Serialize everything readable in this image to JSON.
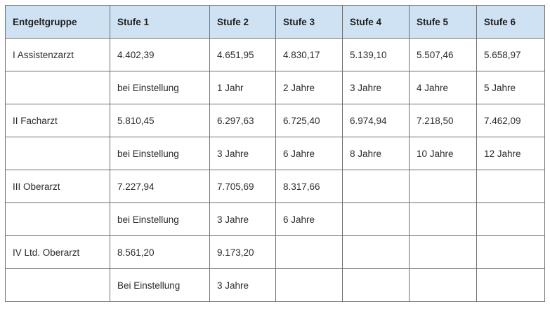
{
  "table": {
    "headers": [
      "Entgeltgruppe",
      "Stufe 1",
      "Stufe 2",
      "Stufe 3",
      "Stufe 4",
      "Stufe 5",
      "Stufe 6"
    ],
    "rows": [
      [
        "I Assistenzarzt",
        "4.402,39",
        "4.651,95",
        "4.830,17",
        "5.139,10",
        "5.507,46",
        "5.658,97"
      ],
      [
        "",
        "bei Einstellung",
        "1 Jahr",
        "2 Jahre",
        "3 Jahre",
        "4 Jahre",
        "5 Jahre"
      ],
      [
        "II Facharzt",
        "5.810,45",
        "6.297,63",
        "6.725,40",
        "6.974,94",
        "7.218,50",
        "7.462,09"
      ],
      [
        "",
        "bei Einstellung",
        "3 Jahre",
        "6 Jahre",
        "8 Jahre",
        "10 Jahre",
        "12 Jahre"
      ],
      [
        "III Oberarzt",
        "7.227,94",
        "7.705,69",
        "8.317,66",
        "",
        "",
        ""
      ],
      [
        "",
        "bei Einstellung",
        "3 Jahre",
        "6 Jahre",
        "",
        "",
        ""
      ],
      [
        "IV Ltd. Oberarzt",
        "8.561,20",
        "9.173,20",
        "",
        "",
        "",
        ""
      ],
      [
        "",
        "Bei Einstellung",
        "3 Jahre",
        "",
        "",
        "",
        ""
      ]
    ]
  },
  "colors": {
    "header_bg": "#cfe2f3",
    "border": "#6f6f6f"
  }
}
